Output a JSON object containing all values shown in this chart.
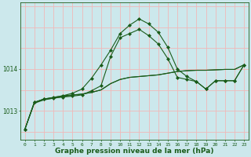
{
  "bg_color": "#cce8ec",
  "grid_color": "#f0b8b8",
  "line_color": "#1a5c1a",
  "marker_color": "#1a5c1a",
  "xlabel": "Graphe pression niveau de la mer (hPa)",
  "xlabel_fontsize": 6.5,
  "xticks": [
    0,
    1,
    2,
    3,
    4,
    5,
    6,
    7,
    8,
    9,
    10,
    11,
    12,
    13,
    14,
    15,
    16,
    17,
    18,
    19,
    20,
    21,
    22,
    23
  ],
  "yticks": [
    1013,
    1014
  ],
  "ylim": [
    1012.3,
    1015.6
  ],
  "xlim": [
    -0.5,
    23.5
  ],
  "line1": [
    1012.55,
    1013.2,
    1013.28,
    1013.32,
    1013.36,
    1013.38,
    1013.4,
    1013.44,
    1013.5,
    1013.65,
    1013.75,
    1013.8,
    1013.82,
    1013.84,
    1013.86,
    1013.9,
    1013.94,
    1013.96,
    1013.97,
    1013.97,
    1013.98,
    1013.99,
    1013.99,
    1014.1
  ],
  "line2": [
    1012.55,
    1013.2,
    1013.28,
    1013.3,
    1013.33,
    1013.35,
    1013.38,
    1013.48,
    1013.6,
    1014.3,
    1014.75,
    1014.85,
    1014.95,
    1014.8,
    1014.6,
    1014.25,
    1013.8,
    1013.75,
    1013.7,
    1013.52,
    1013.72,
    1013.72,
    1013.72,
    1014.1
  ],
  "line3": [
    1012.55,
    1013.2,
    1013.28,
    1013.32,
    1013.36,
    1013.42,
    1013.52,
    1013.78,
    1014.1,
    1014.45,
    1014.85,
    1015.05,
    1015.2,
    1015.08,
    1014.88,
    1014.52,
    1014.0,
    1013.82,
    1013.7,
    1013.52,
    1013.72,
    1013.72,
    1013.72,
    1014.1
  ],
  "line4": [
    1012.55,
    1013.18,
    1013.26,
    1013.3,
    1013.34,
    1013.37,
    1013.4,
    1013.44,
    1013.5,
    1013.65,
    1013.75,
    1013.8,
    1013.82,
    1013.84,
    1013.86,
    1013.9,
    1013.94,
    1013.96,
    1013.97,
    1013.97,
    1013.98,
    1013.99,
    1013.99,
    1014.1
  ]
}
